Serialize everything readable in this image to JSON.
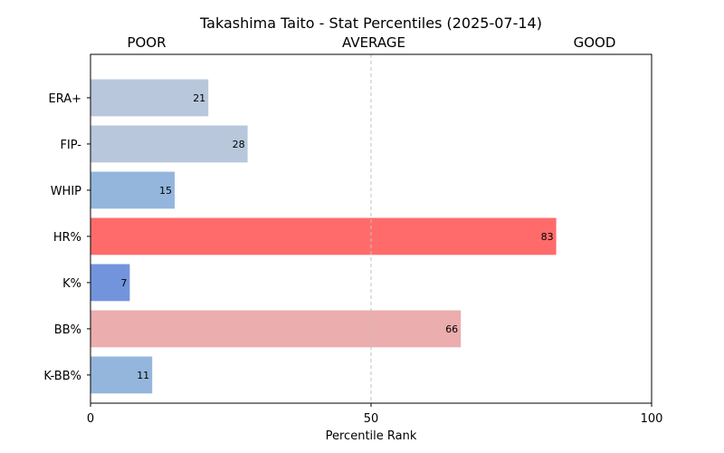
{
  "chart_data": {
    "type": "bar",
    "orientation": "horizontal",
    "title": "Takashima Taito - Stat Percentiles (2025-07-14)",
    "xlabel": "Percentile Rank",
    "ylabel": "",
    "xlim": [
      0,
      100
    ],
    "xticks": [
      0,
      50,
      100
    ],
    "reference_line": 50,
    "band_labels": [
      "POOR",
      "AVERAGE",
      "GOOD"
    ],
    "categories": [
      "ERA+",
      "FIP-",
      "WHIP",
      "HR%",
      "K%",
      "BB%",
      "K-BB%"
    ],
    "values": [
      21,
      28,
      15,
      83,
      7,
      66,
      11
    ],
    "colors": [
      "#b8c7db",
      "#b8c7db",
      "#94b6dc",
      "#ff6b6b",
      "#7294dc",
      "#ebadad",
      "#94b6dc"
    ],
    "grid": false,
    "legend": "none"
  }
}
